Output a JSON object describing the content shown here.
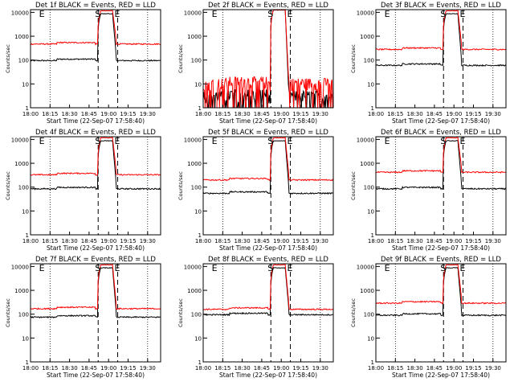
{
  "figure": {
    "common": {
      "x_tick_labels": [
        "18:00",
        "18:15",
        "18:30",
        "18:45",
        "19:00",
        "19:15",
        "19:30"
      ],
      "x_tick_minutes": [
        0,
        15,
        30,
        45,
        60,
        75,
        90
      ],
      "x_range_minutes": [
        0,
        100
      ],
      "xlabel": "Start Time (22-Sep-07 17:58:40)",
      "ylabel": "Counts/sec",
      "y_tick_labels": [
        "1",
        "10",
        "100",
        "1000",
        "10000"
      ],
      "ylim": [
        1,
        13000
      ],
      "yscale": "log",
      "colors": {
        "events": "#000000",
        "lld": "#ff0000",
        "axes": "#000000"
      },
      "interval_markers": [
        "E",
        "S",
        "E"
      ],
      "interval_minutes": [
        9,
        52,
        67
      ]
    }
  },
  "chart_data": [
    {
      "type": "line",
      "title": "Det 1f BLACK = Events, RED = LLD",
      "series": [
        {
          "name": "Events",
          "color": "#000000",
          "base": 95,
          "flare_peak": 9000,
          "gap_from_min": null,
          "gap_to_min": null
        },
        {
          "name": "LLD",
          "color": "#ff0000",
          "base": 470,
          "flare_peak": 12000
        }
      ]
    },
    {
      "type": "line",
      "title": "Det 2f BLACK = Events, RED = LLD",
      "series": [
        {
          "name": "Events",
          "color": "#000000",
          "base": 1.5,
          "flare_peak": 13000
        },
        {
          "name": "LLD",
          "color": "#ff0000",
          "base": 5,
          "flare_peak": 13000
        }
      ]
    },
    {
      "type": "line",
      "title": "Det 3f BLACK = Events, RED = LLD",
      "series": [
        {
          "name": "Events",
          "color": "#000000",
          "base": 60,
          "flare_peak": 9000
        },
        {
          "name": "LLD",
          "color": "#ff0000",
          "base": 280,
          "flare_peak": 12000
        }
      ]
    },
    {
      "type": "line",
      "title": "Det 4f BLACK = Events, RED = LLD",
      "series": [
        {
          "name": "Events",
          "color": "#000000",
          "base": 85,
          "flare_peak": 9000
        },
        {
          "name": "LLD",
          "color": "#ff0000",
          "base": 330,
          "flare_peak": 12000
        }
      ]
    },
    {
      "type": "line",
      "title": "Det 5f BLACK = Events, RED = LLD",
      "series": [
        {
          "name": "Events",
          "color": "#000000",
          "base": 55,
          "flare_peak": 9000
        },
        {
          "name": "LLD",
          "color": "#ff0000",
          "base": 200,
          "flare_peak": 12000
        }
      ]
    },
    {
      "type": "line",
      "title": "Det 6f BLACK = Events, RED = LLD",
      "series": [
        {
          "name": "Events",
          "color": "#000000",
          "base": 85,
          "flare_peak": 9000
        },
        {
          "name": "LLD",
          "color": "#ff0000",
          "base": 420,
          "flare_peak": 12000
        }
      ]
    },
    {
      "type": "line",
      "title": "Det 7f BLACK = Events, RED = LLD",
      "series": [
        {
          "name": "Events",
          "color": "#000000",
          "base": 75,
          "flare_peak": 9000
        },
        {
          "name": "LLD",
          "color": "#ff0000",
          "base": 170,
          "flare_peak": 12000
        }
      ]
    },
    {
      "type": "line",
      "title": "Det 8f BLACK = Events, RED = LLD",
      "series": [
        {
          "name": "Events",
          "color": "#000000",
          "base": 95,
          "flare_peak": 9000
        },
        {
          "name": "LLD",
          "color": "#ff0000",
          "base": 160,
          "flare_peak": 12000
        }
      ]
    },
    {
      "type": "line",
      "title": "Det 9f BLACK = Events, RED = LLD",
      "series": [
        {
          "name": "Events",
          "color": "#000000",
          "base": 90,
          "flare_peak": 9000
        },
        {
          "name": "LLD",
          "color": "#ff0000",
          "base": 290,
          "flare_peak": 12000
        }
      ]
    }
  ]
}
